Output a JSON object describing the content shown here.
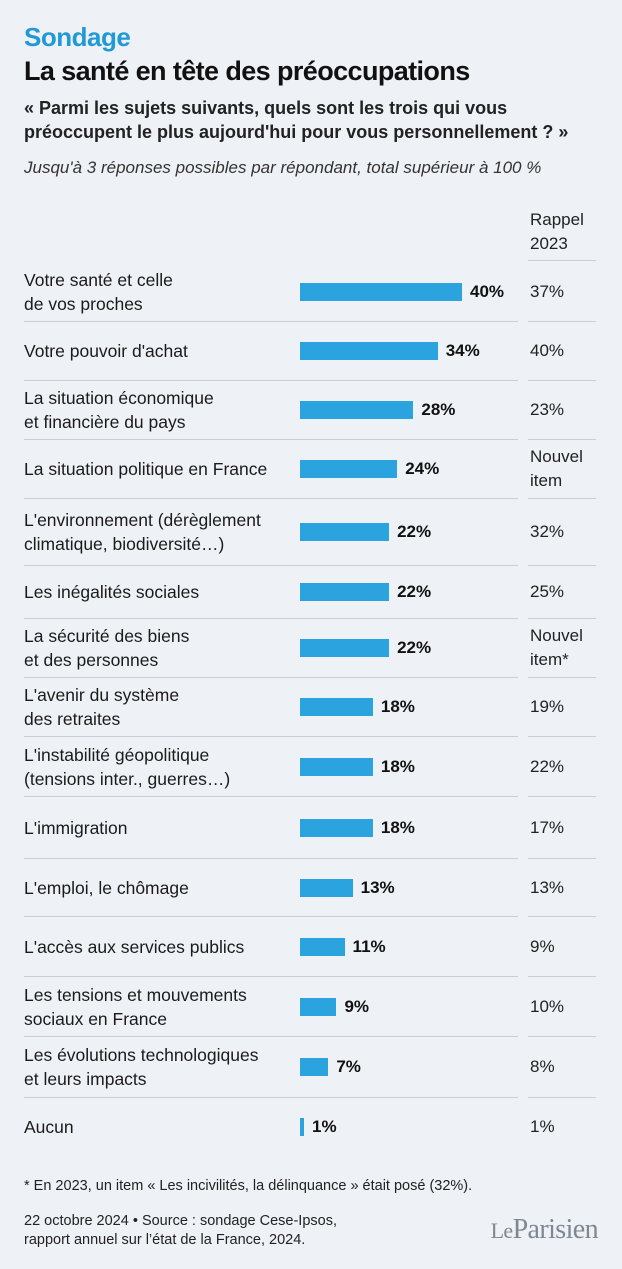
{
  "header": {
    "kicker": "Sondage",
    "title": "La santé en tête des préoccupations",
    "question": "« Parmi les sujets suivants, quels sont les trois qui vous préoccupent le plus aujourd'hui pour vous personnellement ? »",
    "note": "Jusqu'à 3 réponses possibles par répondant, total supérieur à 100 %"
  },
  "rappel_header": [
    "Rappel",
    "2023"
  ],
  "colors": {
    "bar": "#2aa3df",
    "kicker": "#1f9ad6",
    "background": "#eef1f5"
  },
  "chart_data": {
    "type": "bar",
    "orientation": "horizontal",
    "title": "La santé en tête des préoccupations",
    "categories": [
      [
        "Votre santé et celle",
        "de vos proches"
      ],
      [
        "Votre pouvoir d'achat"
      ],
      [
        "La situation économique",
        "et financière du pays"
      ],
      [
        "La situation politique en France"
      ],
      [
        "L'environnement (dérèglement",
        "climatique, biodiversité…)"
      ],
      [
        "Les inégalités sociales"
      ],
      [
        "La sécurité des biens",
        "et des personnes"
      ],
      [
        "L'avenir du système",
        "des retraites"
      ],
      [
        "L'instabilité géopolitique",
        "(tensions inter., guerres…)"
      ],
      [
        "L'immigration"
      ],
      [
        "L'emploi, le chômage"
      ],
      [
        "L'accès aux services publics"
      ],
      [
        "Les tensions et mouvements",
        "sociaux en France"
      ],
      [
        "Les évolutions technologiques",
        "et leurs impacts"
      ],
      [
        "Aucun"
      ]
    ],
    "values": [
      40,
      34,
      28,
      24,
      22,
      22,
      22,
      18,
      18,
      18,
      13,
      11,
      9,
      7,
      1
    ],
    "value_labels": [
      "40%",
      "34%",
      "28%",
      "24%",
      "22%",
      "22%",
      "22%",
      "18%",
      "18%",
      "18%",
      "13%",
      "11%",
      "9%",
      "7%",
      "1%"
    ],
    "rappel_2023": [
      [
        "37%"
      ],
      [
        "40%"
      ],
      [
        "23%"
      ],
      [
        "Nouvel",
        "item"
      ],
      [
        "32%"
      ],
      [
        "25%"
      ],
      [
        "Nouvel",
        "item*"
      ],
      [
        "19%"
      ],
      [
        "22%"
      ],
      [
        "17%"
      ],
      [
        "13%"
      ],
      [
        "9%"
      ],
      [
        "10%"
      ],
      [
        "8%"
      ],
      [
        "1%"
      ]
    ],
    "xlim": [
      0,
      40
    ],
    "grid": false
  },
  "footer": {
    "footnote": "* En 2023, un item « Les incivilités, la délinquance » était posé (32%).",
    "source_line1": "22 octobre 2024 • Source : sondage Cese-Ipsos,",
    "source_line2": "rapport annuel sur l’état de la France, 2024.",
    "logo_le": "Le",
    "logo_name": "Parisien"
  }
}
